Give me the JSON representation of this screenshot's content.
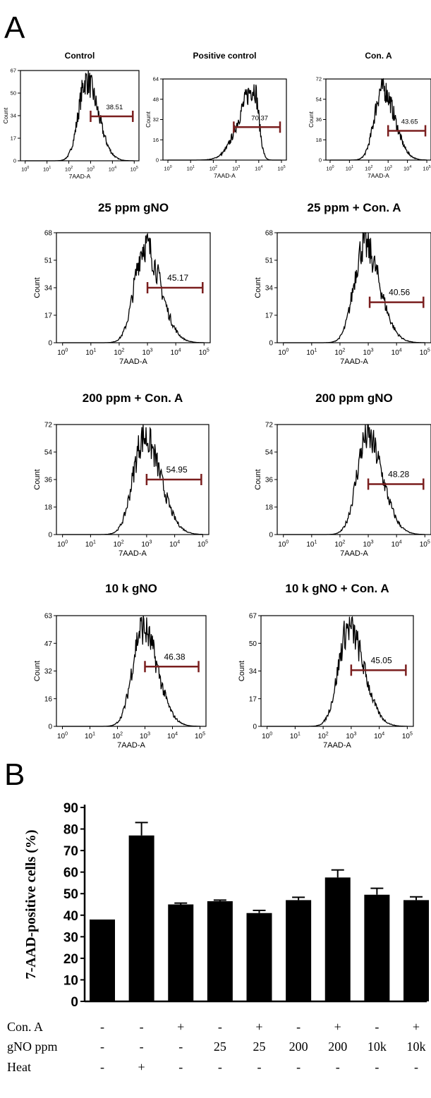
{
  "panels": {
    "a_label": "A",
    "b_label": "B"
  },
  "chart_data": [
    {
      "type": "histogram",
      "title": "Control",
      "xlabel": "7AAD-A",
      "ylabel": "Count",
      "yticks": [
        "0",
        "17",
        "34",
        "50",
        "67"
      ],
      "ymax": 67,
      "x_scale": "log",
      "xlim_exponents": [
        0,
        5
      ],
      "xtick_labels": [
        "10^0",
        "10^1",
        "10^2",
        "10^3",
        "10^4",
        "10^5"
      ],
      "peak_log10": 2.8,
      "spread": 0.42,
      "skew": 0.3,
      "gate": {
        "label": "38.51",
        "from_log10": 3.0,
        "to_log10": 5.0,
        "y": 33
      }
    },
    {
      "type": "histogram",
      "title": "Positive control",
      "xlabel": "7AAD-A",
      "ylabel": "Count",
      "yticks": [
        "0",
        "16",
        "32",
        "48",
        "64"
      ],
      "ymax": 64,
      "x_scale": "log",
      "xlim_exponents": [
        0,
        5
      ],
      "xtick_labels": [
        "10^0",
        "10^1",
        "10^2",
        "10^3",
        "10^4",
        "10^5"
      ],
      "peak_log10": 3.8,
      "spread": 0.5,
      "skew": -0.6,
      "gate": {
        "label": "70.37",
        "from_log10": 2.9,
        "to_log10": 5.0,
        "y": 26
      }
    },
    {
      "type": "histogram",
      "title": "Con. A",
      "xlabel": "7AAD-A",
      "ylabel": "Count",
      "yticks": [
        "0",
        "18",
        "36",
        "54",
        "72"
      ],
      "ymax": 72,
      "x_scale": "log",
      "xlim_exponents": [
        0,
        5
      ],
      "xtick_labels": [
        "10^0",
        "10^1",
        "10^2",
        "10^3",
        "10^4",
        "10^5"
      ],
      "peak_log10": 2.7,
      "spread": 0.48,
      "skew": 0.3,
      "gate": {
        "label": "43.65",
        "from_log10": 3.0,
        "to_log10": 5.0,
        "y": 26
      }
    },
    {
      "type": "histogram",
      "title": "25 ppm gNO",
      "xlabel": "7AAD-A",
      "ylabel": "Count",
      "yticks": [
        "0",
        "17",
        "34",
        "51",
        "68"
      ],
      "ymax": 68,
      "x_scale": "log",
      "xlim_exponents": [
        0,
        5
      ],
      "xtick_labels": [
        "10^0",
        "10^1",
        "10^2",
        "10^3",
        "10^4",
        "10^5"
      ],
      "peak_log10": 2.9,
      "spread": 0.42,
      "skew": 0.3,
      "gate": {
        "label": "45.17",
        "from_log10": 3.0,
        "to_log10": 5.0,
        "y": 34
      }
    },
    {
      "type": "histogram",
      "title": "25 ppm + Con. A",
      "xlabel": "7AAD-A",
      "ylabel": "Count",
      "yticks": [
        "0",
        "17",
        "34",
        "51",
        "68"
      ],
      "ymax": 68,
      "x_scale": "log",
      "xlim_exponents": [
        0,
        5
      ],
      "xtick_labels": [
        "10^0",
        "10^1",
        "10^2",
        "10^3",
        "10^4",
        "10^5"
      ],
      "peak_log10": 2.85,
      "spread": 0.42,
      "skew": 0.3,
      "gate": {
        "label": "40.56",
        "from_log10": 3.05,
        "to_log10": 5.0,
        "y": 25
      }
    },
    {
      "type": "histogram",
      "title": "200 ppm + Con. A",
      "xlabel": "7AAD-A",
      "ylabel": "Count",
      "yticks": [
        "0",
        "18",
        "36",
        "54",
        "72"
      ],
      "ymax": 72,
      "x_scale": "log",
      "xlim_exponents": [
        0,
        5
      ],
      "xtick_labels": [
        "10^0",
        "10^1",
        "10^2",
        "10^3",
        "10^4",
        "10^5"
      ],
      "peak_log10": 2.9,
      "spread": 0.45,
      "skew": 0.3,
      "gate": {
        "label": "54.95",
        "from_log10": 3.0,
        "to_log10": 5.0,
        "y": 36
      }
    },
    {
      "type": "histogram",
      "title": "200 ppm gNO",
      "xlabel": "7AAD-A",
      "ylabel": "Count",
      "yticks": [
        "0",
        "18",
        "36",
        "54",
        "72"
      ],
      "ymax": 72,
      "x_scale": "log",
      "xlim_exponents": [
        0,
        5
      ],
      "xtick_labels": [
        "10^0",
        "10^1",
        "10^2",
        "10^3",
        "10^4",
        "10^5"
      ],
      "peak_log10": 2.95,
      "spread": 0.42,
      "skew": 0.3,
      "gate": {
        "label": "48.28",
        "from_log10": 3.0,
        "to_log10": 5.0,
        "y": 33
      }
    },
    {
      "type": "histogram",
      "title": "10 k gNO",
      "xlabel": "7AAD-A",
      "ylabel": "Count",
      "yticks": [
        "0",
        "16",
        "32",
        "47",
        "63"
      ],
      "ymax": 63,
      "x_scale": "log",
      "xlim_exponents": [
        0,
        5
      ],
      "xtick_labels": [
        "10^0",
        "10^1",
        "10^2",
        "10^3",
        "10^4",
        "10^5"
      ],
      "peak_log10": 2.9,
      "spread": 0.42,
      "skew": 0.3,
      "gate": {
        "label": "46.38",
        "from_log10": 3.0,
        "to_log10": 5.0,
        "y": 34
      }
    },
    {
      "type": "histogram",
      "title": "10 k gNO + Con. A",
      "xlabel": "7AAD-A",
      "ylabel": "Count",
      "yticks": [
        "0",
        "17",
        "34",
        "50",
        "67"
      ],
      "ymax": 67,
      "x_scale": "log",
      "xlim_exponents": [
        0,
        5
      ],
      "xtick_labels": [
        "10^0",
        "10^1",
        "10^2",
        "10^3",
        "10^4",
        "10^5"
      ],
      "peak_log10": 2.9,
      "spread": 0.42,
      "skew": 0.3,
      "gate": {
        "label": "45.05",
        "from_log10": 3.0,
        "to_log10": 5.0,
        "y": 34
      }
    },
    {
      "type": "bar",
      "ylabel": "7-AAD-positive cells (%)",
      "ylim": [
        0,
        90
      ],
      "yticks": [
        "0",
        "10",
        "20",
        "30",
        "40",
        "50",
        "60",
        "70",
        "80",
        "90"
      ],
      "values": [
        38,
        77,
        45,
        46.5,
        41,
        47,
        57.5,
        49.5,
        47
      ],
      "errors": [
        0,
        6,
        0.6,
        0.5,
        1.2,
        1.3,
        3.5,
        3,
        1.5
      ],
      "conditions": [
        {
          "label": "Con. A",
          "values": [
            "-",
            "-",
            "+",
            "-",
            "+",
            "-",
            "+",
            "-",
            "+"
          ]
        },
        {
          "label": "gNO ppm",
          "values": [
            "-",
            "-",
            "-",
            "25",
            "25",
            "200",
            "200",
            "10k",
            "10k"
          ]
        },
        {
          "label": "Heat",
          "values": [
            "-",
            "+",
            "-",
            "-",
            "-",
            "-",
            "-",
            "-",
            "-"
          ]
        }
      ],
      "colors": {
        "bar": "#000000",
        "gate": "#7a1e1e"
      }
    }
  ]
}
